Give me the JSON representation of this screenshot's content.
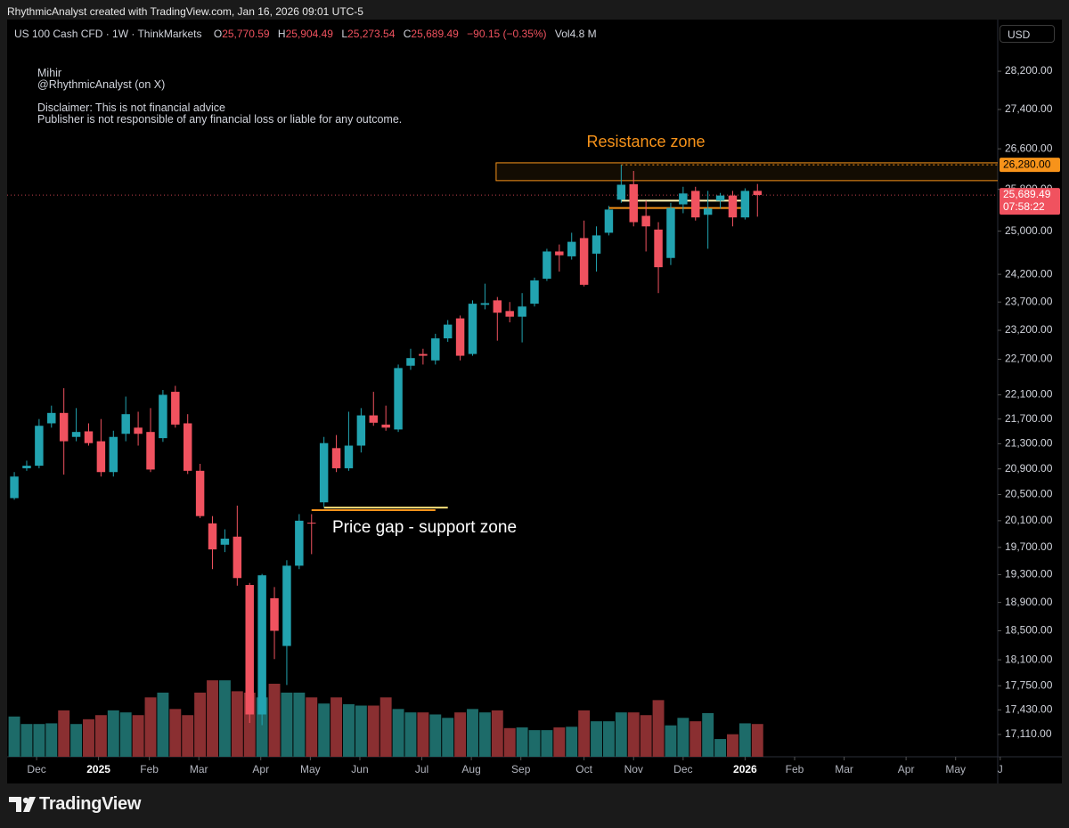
{
  "topbar": "RhythmicAnalyst created with TradingView.com, Jan 16, 2026 09:01 UTC-5",
  "brand": "TradingView",
  "currency": "USD",
  "notes": {
    "author": "Mihir",
    "handle": "@RhythmicAnalyst (on X)",
    "disclaimer_1": "Disclaimer: This is not financial advice",
    "disclaimer_2": "Publisher is not responsible of any financial loss or liable for any outcome."
  },
  "chart_data": {
    "type": "candlestick",
    "title": "US 100 Cash CFD · 1W · ThinkMarkets",
    "legend": {
      "open_key": "O",
      "open": "25,770.59",
      "high_key": "H",
      "high": "25,904.49",
      "low_key": "L",
      "low": "25,273.54",
      "close_key": "C",
      "close": "25,689.49",
      "change": "−90.15 (−0.35%)",
      "volume_key": "Vol",
      "volume": "4.8 M"
    },
    "categories": [
      null,
      null,
      null,
      null,
      null,
      null,
      null,
      null,
      null,
      null,
      null,
      null,
      null,
      null,
      null,
      null,
      null,
      null,
      null,
      null,
      null,
      null,
      null,
      null,
      null,
      null,
      null,
      null,
      null,
      null,
      null,
      null,
      null,
      null,
      null,
      null,
      null,
      null,
      null,
      null,
      null,
      null,
      null,
      null,
      null,
      null,
      null,
      null,
      null,
      null,
      null,
      null,
      null,
      null,
      null,
      null,
      null,
      null,
      null,
      null,
      null
    ],
    "open": [
      20445,
      20910,
      20950,
      21630,
      21800,
      21410,
      21500,
      21340,
      20850,
      21460,
      21560,
      21490,
      21390,
      22150,
      21630,
      20870,
      20060,
      19740,
      19860,
      19150,
      17370,
      18960,
      18290,
      19430,
      20070,
      20380,
      21230,
      20910,
      21270,
      21760,
      21610,
      21530,
      22590,
      22790,
      22680,
      23060,
      23410,
      22790,
      23650,
      23730,
      23540,
      23440,
      23670,
      24120,
      24620,
      24530,
      24870,
      24580,
      24970,
      25600,
      25900,
      25290,
      25030,
      24500,
      25510,
      25770,
      25310,
      25580,
      25680,
      25260,
      25770.59
    ],
    "high": [
      20850,
      21030,
      21700,
      21920,
      22210,
      21880,
      21630,
      21700,
      21510,
      22070,
      21820,
      21880,
      22180,
      22250,
      21780,
      20980,
      20170,
      19970,
      20330,
      19180,
      19310,
      19120,
      19510,
      20200,
      20200,
      21410,
      21440,
      21820,
      21880,
      22150,
      21920,
      22610,
      22880,
      22880,
      23140,
      23380,
      23460,
      23730,
      24030,
      23790,
      23700,
      23860,
      24140,
      24670,
      24750,
      24970,
      25200,
      25090,
      25480,
      26280,
      26160,
      25580,
      25170,
      25540,
      25850,
      25850,
      25770,
      25730,
      25770,
      25820,
      25904.49
    ],
    "low": [
      20420,
      20870,
      20910,
      21560,
      20810,
      21340,
      21270,
      20780,
      20780,
      21340,
      21270,
      20850,
      21330,
      21560,
      20820,
      20140,
      19380,
      19630,
      19140,
      17260,
      17230,
      18110,
      17760,
      19380,
      19600,
      20310,
      20850,
      20870,
      21160,
      21590,
      21510,
      21490,
      22520,
      22610,
      22610,
      23000,
      22680,
      22760,
      23570,
      23020,
      23340,
      22990,
      23620,
      24080,
      24250,
      24470,
      23980,
      24250,
      24920,
      25540,
      25090,
      24620,
      23860,
      24370,
      25340,
      25200,
      24670,
      25430,
      25090,
      25220,
      25273.54
    ],
    "close": [
      20780,
      20950,
      21590,
      21800,
      21340,
      21490,
      21310,
      20850,
      21410,
      21780,
      21460,
      20890,
      22100,
      21610,
      20870,
      20170,
      19670,
      19830,
      19250,
      17370,
      19290,
      18500,
      19430,
      20100,
      20060,
      21310,
      20910,
      21270,
      21760,
      21640,
      21560,
      22550,
      22720,
      22760,
      23060,
      23300,
      22760,
      23670,
      23680,
      23510,
      23440,
      23620,
      24090,
      24620,
      24550,
      24800,
      24010,
      24920,
      25410,
      25890,
      25170,
      25090,
      24330,
      25440,
      25720,
      25260,
      25430,
      25680,
      25260,
      25770,
      25689.49
    ],
    "volume": [
      5.9,
      4.8,
      4.8,
      4.9,
      6.8,
      4.8,
      5.5,
      6.1,
      6.8,
      6.5,
      6.1,
      8.7,
      9.4,
      7.0,
      6.1,
      9.4,
      11.2,
      11.2,
      9.6,
      9.4,
      8.7,
      10.7,
      9.4,
      9.4,
      8.7,
      7.8,
      8.7,
      7.7,
      7.5,
      7.5,
      8.7,
      7.0,
      6.5,
      6.5,
      6.2,
      5.7,
      6.5,
      7.0,
      6.5,
      6.8,
      4.2,
      4.3,
      3.9,
      3.9,
      4.3,
      4.4,
      6.8,
      5.2,
      5.2,
      6.5,
      6.5,
      6.1,
      8.3,
      4.6,
      5.7,
      5.2,
      6.4,
      2.6,
      3.3,
      4.9,
      4.8
    ],
    "up_color": "#22a3b0",
    "down_color": "#f0525f",
    "volume_up_color": "#1d6b69",
    "volume_down_color": "#8a2f31",
    "volume_lim": [
      0,
      108
    ],
    "log": true,
    "grid": false,
    "xlim": [
      -0.58,
      79.4
    ],
    "xticks": [
      {
        "value": 1.8,
        "label": "Dec"
      },
      {
        "value": 6.8,
        "label": "2025"
      },
      {
        "value": 10.9,
        "label": "Feb"
      },
      {
        "value": 14.9,
        "label": "Mar"
      },
      {
        "value": 19.9,
        "label": "Apr"
      },
      {
        "value": 23.9,
        "label": "May"
      },
      {
        "value": 27.9,
        "label": "Jun"
      },
      {
        "value": 32.9,
        "label": "Jul"
      },
      {
        "value": 36.9,
        "label": "Aug"
      },
      {
        "value": 40.9,
        "label": "Sep"
      },
      {
        "value": 46,
        "label": "Oct"
      },
      {
        "value": 50,
        "label": "Nov"
      },
      {
        "value": 54,
        "label": "Dec"
      },
      {
        "value": 59,
        "label": "2026"
      },
      {
        "value": 63,
        "label": "Feb"
      },
      {
        "value": 67,
        "label": "Mar"
      },
      {
        "value": 72,
        "label": "Apr"
      },
      {
        "value": 76,
        "label": "May"
      },
      {
        "value": 79.6,
        "label": "J"
      }
    ],
    "ylim": [
      16825,
      29320
    ],
    "yticks": [
      {
        "value": 28200,
        "label": "28,200.00"
      },
      {
        "value": 27400,
        "label": "27,400.00"
      },
      {
        "value": 26600,
        "label": "26,600.00"
      },
      {
        "value": 25800,
        "label": "25,800.00"
      },
      {
        "value": 25000,
        "label": "25,000.00"
      },
      {
        "value": 24200,
        "label": "24,200.00"
      },
      {
        "value": 23700,
        "label": "23,700.00"
      },
      {
        "value": 23200,
        "label": "23,200.00"
      },
      {
        "value": 22700,
        "label": "22,700.00"
      },
      {
        "value": 22100,
        "label": "22,100.00"
      },
      {
        "value": 21700,
        "label": "21,700.00"
      },
      {
        "value": 21300,
        "label": "21,300.00"
      },
      {
        "value": 20900,
        "label": "20,900.00"
      },
      {
        "value": 20500,
        "label": "20,500.00"
      },
      {
        "value": 20100,
        "label": "20,100.00"
      },
      {
        "value": 19700,
        "label": "19,700.00"
      },
      {
        "value": 19300,
        "label": "19,300.00"
      },
      {
        "value": 18900,
        "label": "18,900.00"
      },
      {
        "value": 18500,
        "label": "18,500.00"
      },
      {
        "value": 18100,
        "label": "18,100.00"
      },
      {
        "value": 17750,
        "label": "17,750.00"
      },
      {
        "value": 17430,
        "label": "17,430.00"
      },
      {
        "value": 17110,
        "label": "17,110.00"
      }
    ],
    "last_price_label": "25,689.49",
    "countdown": "07:58:22",
    "resistance_zone": {
      "label": "Resistance zone",
      "from": 38.9,
      "top": 26320,
      "bottom": 25970,
      "color": "#f7931a"
    },
    "resistance_level": {
      "value": 26280,
      "label": "26,280.00",
      "from": 49,
      "color": "#f7931a"
    },
    "support_label": "Price gap - support zone",
    "levels": [
      {
        "price": 20260,
        "from": 24,
        "to": 34,
        "color": "#f7931a"
      },
      {
        "price": 20300,
        "from": 25,
        "to": 35,
        "color": "#ffe07a"
      },
      {
        "price": 25440,
        "from": 48,
        "to": 59,
        "color": "#f7931a"
      },
      {
        "price": 25580,
        "from": 49,
        "to": 59,
        "color": "#fff3b0"
      }
    ]
  }
}
